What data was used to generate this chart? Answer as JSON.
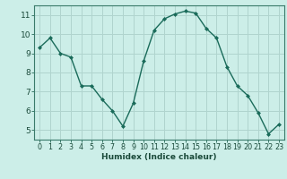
{
  "x": [
    0,
    1,
    2,
    3,
    4,
    5,
    6,
    7,
    8,
    9,
    10,
    11,
    12,
    13,
    14,
    15,
    16,
    17,
    18,
    19,
    20,
    21,
    22,
    23
  ],
  "y": [
    9.3,
    9.8,
    9.0,
    8.8,
    7.3,
    7.3,
    6.6,
    6.0,
    5.2,
    6.4,
    8.6,
    10.2,
    10.8,
    11.05,
    11.2,
    11.1,
    10.3,
    9.8,
    8.3,
    7.3,
    6.8,
    5.9,
    4.8,
    5.3
  ],
  "xlabel": "Humidex (Indice chaleur)",
  "bg_color": "#cceee8",
  "grid_color": "#b0d4ce",
  "line_color": "#1a6b5a",
  "marker_color": "#1a6b5a",
  "ylim": [
    4.5,
    11.5
  ],
  "xlim": [
    -0.5,
    23.5
  ],
  "yticks": [
    5,
    6,
    7,
    8,
    9,
    10,
    11
  ],
  "xticks": [
    0,
    1,
    2,
    3,
    4,
    5,
    6,
    7,
    8,
    9,
    10,
    11,
    12,
    13,
    14,
    15,
    16,
    17,
    18,
    19,
    20,
    21,
    22,
    23
  ],
  "spine_color": "#3a7a6a",
  "tick_color": "#1a4a3a",
  "xlabel_fontsize": 6.5,
  "ytick_fontsize": 6.5,
  "xtick_fontsize": 5.8
}
